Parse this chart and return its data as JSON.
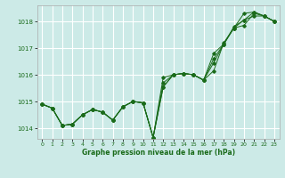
{
  "title": "Graphe pression niveau de la mer (hPa)",
  "bg_color": "#cceae7",
  "grid_color": "#ffffff",
  "line_color": "#1a6b1a",
  "xlim": [
    -0.5,
    23.5
  ],
  "ylim": [
    1013.6,
    1018.6
  ],
  "yticks": [
    1014,
    1015,
    1016,
    1017,
    1018
  ],
  "xticks": [
    0,
    1,
    2,
    3,
    4,
    5,
    6,
    7,
    8,
    9,
    10,
    11,
    12,
    13,
    14,
    15,
    16,
    17,
    18,
    19,
    20,
    21,
    22,
    23
  ],
  "series": [
    [
      1014.9,
      1014.75,
      1014.1,
      1014.15,
      1014.5,
      1014.7,
      1014.6,
      1014.3,
      1014.8,
      1015.0,
      1014.95,
      1013.65,
      1015.9,
      1016.0,
      1016.05,
      1016.0,
      1015.8,
      1016.15,
      1017.2,
      1017.75,
      1017.85,
      1018.3,
      1018.2,
      1018.0
    ],
    [
      1014.9,
      1014.75,
      1014.1,
      1014.15,
      1014.5,
      1014.7,
      1014.6,
      1014.3,
      1014.8,
      1015.0,
      1014.95,
      1013.65,
      1015.55,
      1016.0,
      1016.05,
      1016.0,
      1015.8,
      1016.6,
      1017.15,
      1017.75,
      1018.3,
      1018.35,
      1018.2,
      1018.0
    ],
    [
      1014.9,
      1014.75,
      1014.1,
      1014.15,
      1014.5,
      1014.7,
      1014.6,
      1014.3,
      1014.8,
      1015.0,
      1014.95,
      1013.65,
      1015.7,
      1016.0,
      1016.05,
      1016.0,
      1015.8,
      1016.8,
      1017.15,
      1017.8,
      1018.05,
      1018.35,
      1018.2,
      1018.0
    ],
    [
      1014.9,
      1014.75,
      1014.1,
      1014.15,
      1014.5,
      1014.7,
      1014.6,
      1014.3,
      1014.8,
      1015.0,
      1014.95,
      1013.65,
      1015.55,
      1016.0,
      1016.05,
      1016.0,
      1015.8,
      1016.45,
      1017.15,
      1017.75,
      1018.05,
      1018.2,
      1018.2,
      1018.0
    ]
  ]
}
